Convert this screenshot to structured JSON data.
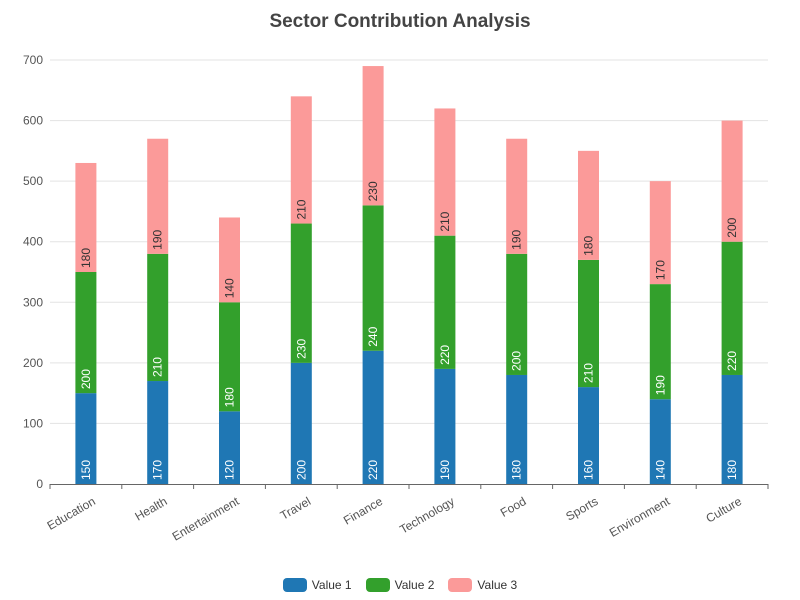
{
  "chart_data": {
    "type": "bar",
    "stacked": true,
    "title": "Sector Contribution Analysis",
    "xlabel": "",
    "ylabel": "",
    "ylim": [
      0,
      700
    ],
    "yticks": [
      0,
      100,
      200,
      300,
      400,
      500,
      600,
      700
    ],
    "grid": true,
    "legend_position": "bottom-center",
    "categories": [
      "Education",
      "Health",
      "Entertainment",
      "Travel",
      "Finance",
      "Technology",
      "Food",
      "Sports",
      "Environment",
      "Culture"
    ],
    "series": [
      {
        "name": "Value 1",
        "color": "#1f77b4",
        "values": [
          150,
          170,
          120,
          200,
          220,
          190,
          180,
          160,
          140,
          180
        ]
      },
      {
        "name": "Value 2",
        "color": "#33a02c",
        "values": [
          200,
          210,
          180,
          230,
          240,
          220,
          200,
          210,
          190,
          220
        ]
      },
      {
        "name": "Value 3",
        "color": "#fb9a99",
        "values": [
          180,
          190,
          140,
          210,
          230,
          210,
          190,
          180,
          170,
          200
        ]
      }
    ]
  }
}
